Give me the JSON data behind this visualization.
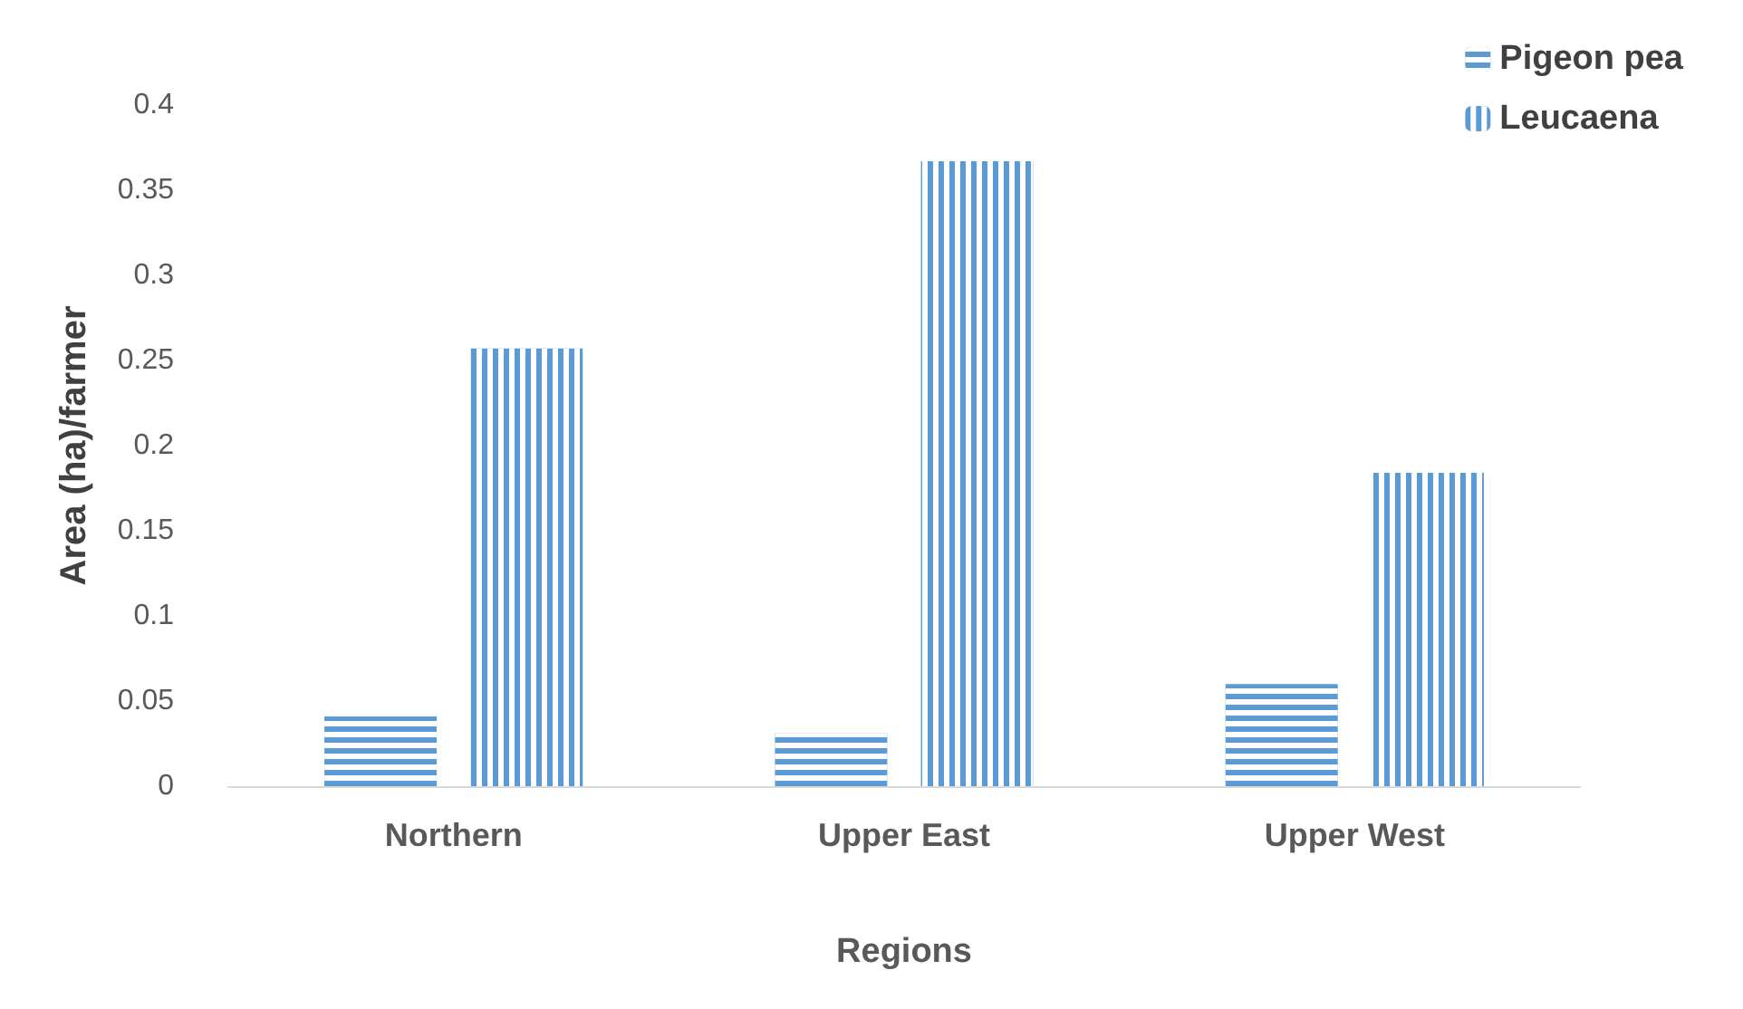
{
  "chart_data": {
    "type": "bar",
    "xlabel": "Regions",
    "ylabel": "Area (ha)/farmer",
    "categories": [
      "Northern",
      "Upper East",
      "Upper West"
    ],
    "series": [
      {
        "name": "Pigeon pea",
        "color": "#5b9bd5",
        "values": [
          0.041,
          0.031,
          0.06
        ]
      },
      {
        "name": "Leucaena",
        "color": "#5b9bd5",
        "values": [
          0.257,
          0.367,
          0.184
        ]
      }
    ],
    "ylim": [
      0,
      0.4
    ],
    "yticks": [
      0,
      0.05,
      0.1,
      0.15,
      0.2,
      0.25,
      0.3,
      0.35,
      0.4
    ],
    "grid": false,
    "legend": "top right"
  }
}
